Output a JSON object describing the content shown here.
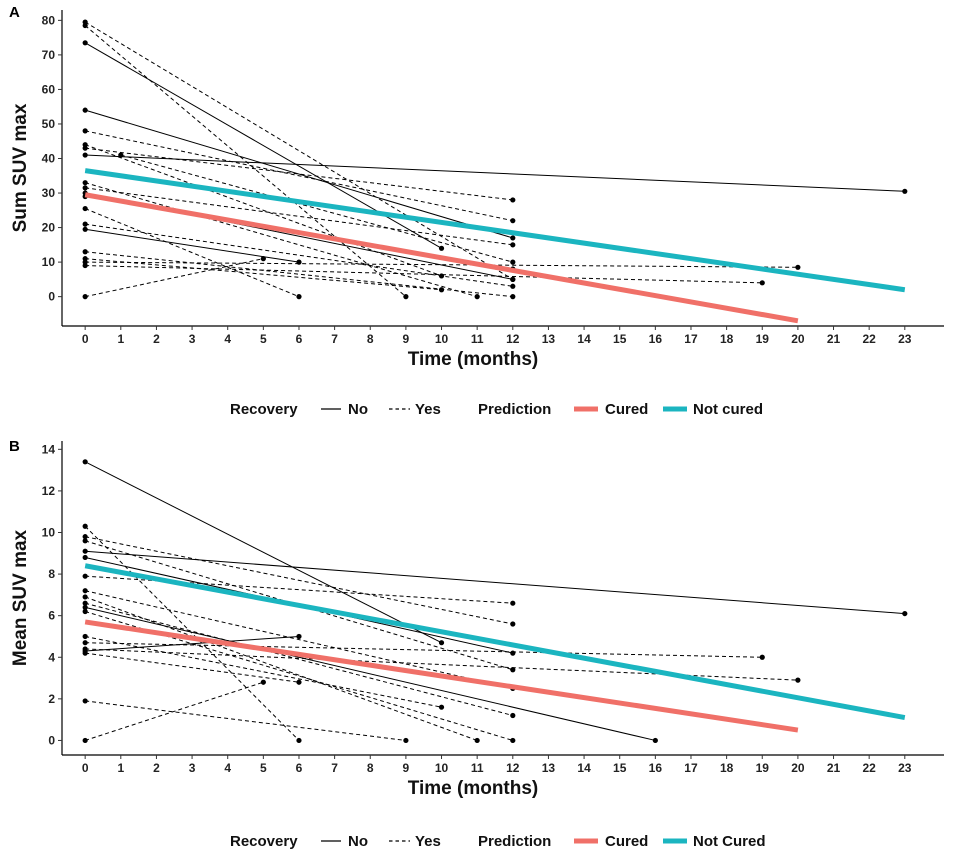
{
  "chart_data": [
    {
      "panel": "A",
      "type": "line",
      "xlabel": "Time (months)",
      "ylabel": "Sum SUV max",
      "xlim": [
        -0.65,
        24.1
      ],
      "ylim": [
        -8.5,
        83
      ],
      "xticks": [
        0,
        1,
        2,
        3,
        4,
        5,
        6,
        7,
        8,
        9,
        10,
        11,
        12,
        13,
        14,
        15,
        16,
        17,
        18,
        19,
        20,
        21,
        22,
        23
      ],
      "yticks": [
        0,
        10,
        20,
        30,
        40,
        50,
        60,
        70,
        80
      ],
      "patients": [
        {
          "recovery": "No",
          "x": [
            0,
            23
          ],
          "y": [
            41,
            30.5
          ]
        },
        {
          "recovery": "No",
          "x": [
            0,
            10
          ],
          "y": [
            73.5,
            14
          ]
        },
        {
          "recovery": "No",
          "x": [
            0,
            12
          ],
          "y": [
            54,
            17
          ]
        },
        {
          "recovery": "No",
          "x": [
            0,
            6
          ],
          "y": [
            19.5,
            10
          ]
        },
        {
          "recovery": "No",
          "x": [
            0,
            12
          ],
          "y": [
            30,
            5
          ]
        },
        {
          "recovery": "Yes",
          "x": [
            0,
            12
          ],
          "y": [
            79.5,
            5
          ]
        },
        {
          "recovery": "Yes",
          "x": [
            0,
            9
          ],
          "y": [
            78.5,
            0
          ]
        },
        {
          "recovery": "Yes",
          "x": [
            0,
            12
          ],
          "y": [
            48,
            22
          ]
        },
        {
          "recovery": "Yes",
          "x": [
            0,
            10
          ],
          "y": [
            44,
            6
          ]
        },
        {
          "recovery": "Yes",
          "x": [
            0,
            12
          ],
          "y": [
            43,
            28
          ]
        },
        {
          "recovery": "Yes",
          "x": [
            0,
            11
          ],
          "y": [
            33,
            0
          ]
        },
        {
          "recovery": "Yes",
          "x": [
            0,
            12
          ],
          "y": [
            31.5,
            15
          ]
        },
        {
          "recovery": "Yes",
          "x": [
            0,
            12
          ],
          "y": [
            29,
            8
          ]
        },
        {
          "recovery": "Yes",
          "x": [
            0,
            6
          ],
          "y": [
            25.5,
            0
          ]
        },
        {
          "recovery": "Yes",
          "x": [
            0,
            12
          ],
          "y": [
            21,
            3
          ]
        },
        {
          "recovery": "Yes",
          "x": [
            0,
            12
          ],
          "y": [
            13,
            0
          ]
        },
        {
          "recovery": "Yes",
          "x": [
            0,
            10
          ],
          "y": [
            11,
            2
          ]
        },
        {
          "recovery": "Yes",
          "x": [
            0,
            19
          ],
          "y": [
            9,
            4
          ]
        },
        {
          "recovery": "Yes",
          "x": [
            0,
            5
          ],
          "y": [
            0,
            11
          ]
        },
        {
          "recovery": "Yes",
          "x": [
            0,
            20
          ],
          "y": [
            10,
            8.5
          ]
        },
        {
          "recovery": "Yes",
          "x": [
            1,
            12
          ],
          "y": [
            41,
            10
          ]
        }
      ],
      "predictions": [
        {
          "name": "Cured",
          "color": "#F07068",
          "x": [
            0,
            20
          ],
          "y": [
            29.5,
            -7
          ]
        },
        {
          "name": "Not cured",
          "color": "#1BB5C0",
          "x": [
            0,
            23
          ],
          "y": [
            36.5,
            2
          ]
        }
      ],
      "legend": {
        "recovery_title": "Recovery",
        "no_label": "No",
        "yes_label": "Yes",
        "prediction_title": "Prediction",
        "cured_label": "Cured",
        "notcured_label": "Not cured"
      }
    },
    {
      "panel": "B",
      "type": "line",
      "xlabel": "Time (months)",
      "ylabel": "Mean SUV max",
      "xlim": [
        -0.65,
        24.1
      ],
      "ylim": [
        -0.7,
        14.4
      ],
      "xticks": [
        0,
        1,
        2,
        3,
        4,
        5,
        6,
        7,
        8,
        9,
        10,
        11,
        12,
        13,
        14,
        15,
        16,
        17,
        18,
        19,
        20,
        21,
        22,
        23
      ],
      "yticks": [
        0,
        2,
        4,
        6,
        8,
        10,
        12,
        14
      ],
      "patients": [
        {
          "recovery": "No",
          "x": [
            0,
            10
          ],
          "y": [
            13.4,
            4.7
          ]
        },
        {
          "recovery": "No",
          "x": [
            0,
            23
          ],
          "y": [
            9.1,
            6.1
          ]
        },
        {
          "recovery": "No",
          "x": [
            0,
            12
          ],
          "y": [
            8.8,
            4.2
          ]
        },
        {
          "recovery": "No",
          "x": [
            0,
            16
          ],
          "y": [
            6.4,
            0
          ]
        },
        {
          "recovery": "No",
          "x": [
            0,
            6
          ],
          "y": [
            4.3,
            5.0
          ]
        },
        {
          "recovery": "Yes",
          "x": [
            0,
            6
          ],
          "y": [
            10.3,
            0
          ]
        },
        {
          "recovery": "Yes",
          "x": [
            0,
            12
          ],
          "y": [
            9.8,
            5.6
          ]
        },
        {
          "recovery": "Yes",
          "x": [
            0,
            12
          ],
          "y": [
            9.6,
            3.4
          ]
        },
        {
          "recovery": "Yes",
          "x": [
            0,
            12
          ],
          "y": [
            7.9,
            6.6
          ]
        },
        {
          "recovery": "Yes",
          "x": [
            0,
            12
          ],
          "y": [
            7.2,
            2.5
          ]
        },
        {
          "recovery": "Yes",
          "x": [
            0,
            11
          ],
          "y": [
            6.9,
            0
          ]
        },
        {
          "recovery": "Yes",
          "x": [
            0,
            12
          ],
          "y": [
            6.6,
            1.2
          ]
        },
        {
          "recovery": "Yes",
          "x": [
            0,
            12
          ],
          "y": [
            6.2,
            0
          ]
        },
        {
          "recovery": "Yes",
          "x": [
            0,
            10
          ],
          "y": [
            5.0,
            1.6
          ]
        },
        {
          "recovery": "Yes",
          "x": [
            0,
            19
          ],
          "y": [
            4.7,
            4.0
          ]
        },
        {
          "recovery": "Yes",
          "x": [
            0,
            20
          ],
          "y": [
            4.4,
            2.9
          ]
        },
        {
          "recovery": "Yes",
          "x": [
            0,
            6
          ],
          "y": [
            4.2,
            2.8
          ]
        },
        {
          "recovery": "Yes",
          "x": [
            0,
            5
          ],
          "y": [
            0,
            2.8
          ]
        },
        {
          "recovery": "Yes",
          "x": [
            0,
            9
          ],
          "y": [
            1.9,
            0
          ]
        }
      ],
      "predictions": [
        {
          "name": "Cured",
          "color": "#F07068",
          "x": [
            0,
            20
          ],
          "y": [
            5.7,
            0.5
          ]
        },
        {
          "name": "Not Cured",
          "color": "#1BB5C0",
          "x": [
            0,
            23
          ],
          "y": [
            8.4,
            1.1
          ]
        }
      ],
      "legend": {
        "recovery_title": "Recovery",
        "no_label": "No",
        "yes_label": "Yes",
        "prediction_title": "Prediction",
        "cured_label": "Cured",
        "notcured_label": "Not Cured"
      }
    }
  ]
}
